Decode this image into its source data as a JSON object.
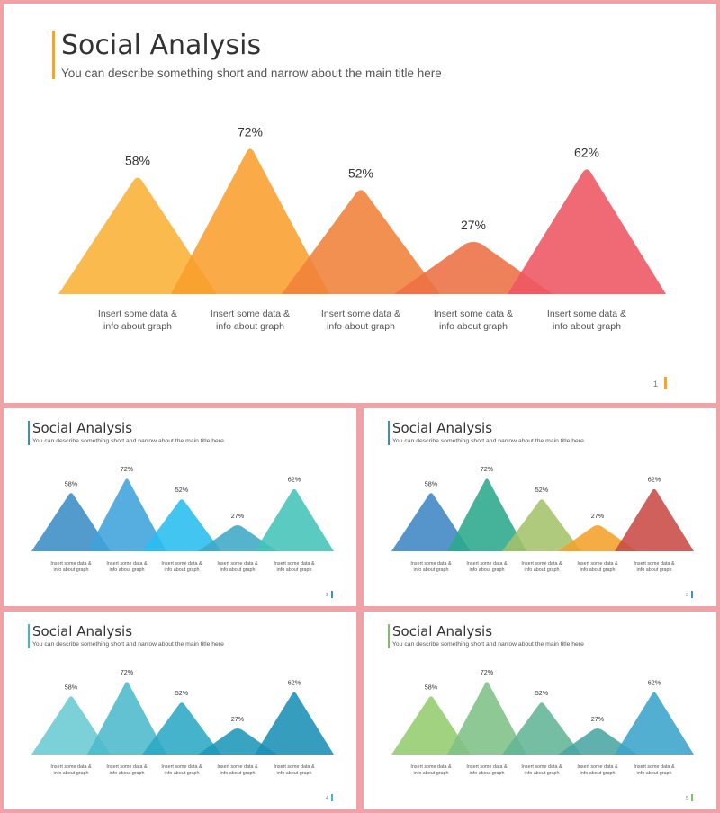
{
  "slides": [
    {
      "title": "Social Analysis",
      "subtitle": "You can describe something short and narrow about the main title here",
      "page": "1",
      "accent": "#f5a623",
      "colors": [
        "#fbb034",
        "#f99e2c",
        "#f0813a",
        "#ed6f43",
        "#ee5563"
      ]
    },
    {
      "title": "Social Analysis",
      "subtitle": "You can describe something short and narrow about the main title here",
      "page": "2",
      "accent": "#3c8ec8",
      "colors": [
        "#3b8dc6",
        "#3fa3dc",
        "#29bdf0",
        "#3fa9c6",
        "#44c4b9"
      ]
    },
    {
      "title": "Social Analysis",
      "subtitle": "You can describe something short and narrow about the main title here",
      "page": "3",
      "accent": "#3c8ec8",
      "colors": [
        "#3f86c4",
        "#2ba88c",
        "#a4c26b",
        "#f5a12a",
        "#c84a45"
      ]
    },
    {
      "title": "Social Analysis",
      "subtitle": "You can describe something short and narrow about the main title here",
      "page": "4",
      "accent": "#3fb8c8",
      "colors": [
        "#69cbd2",
        "#4cb9cc",
        "#2aa8c4",
        "#1d97ba",
        "#1a8fb5"
      ]
    },
    {
      "title": "Social Analysis",
      "subtitle": "You can describe something short and narrow about the main title here",
      "page": "5",
      "accent": "#7cc06a",
      "colors": [
        "#94cc6e",
        "#7ec286",
        "#63b596",
        "#4aa6a3",
        "#3aa4cc"
      ]
    }
  ],
  "chart_data": {
    "type": "area",
    "categories": [
      "Insert some data & info about graph",
      "Insert some data & info about graph",
      "Insert some data & info about graph",
      "Insert some data & info about graph",
      "Insert some data & info about graph"
    ],
    "label_lines": [
      "Insert some data &",
      "info about graph"
    ],
    "values": [
      58,
      72,
      52,
      27,
      62
    ],
    "value_labels": [
      "58%",
      "72%",
      "52%",
      "27%",
      "62%"
    ],
    "ylim": [
      0,
      100
    ],
    "grid": false,
    "legend": "none"
  }
}
